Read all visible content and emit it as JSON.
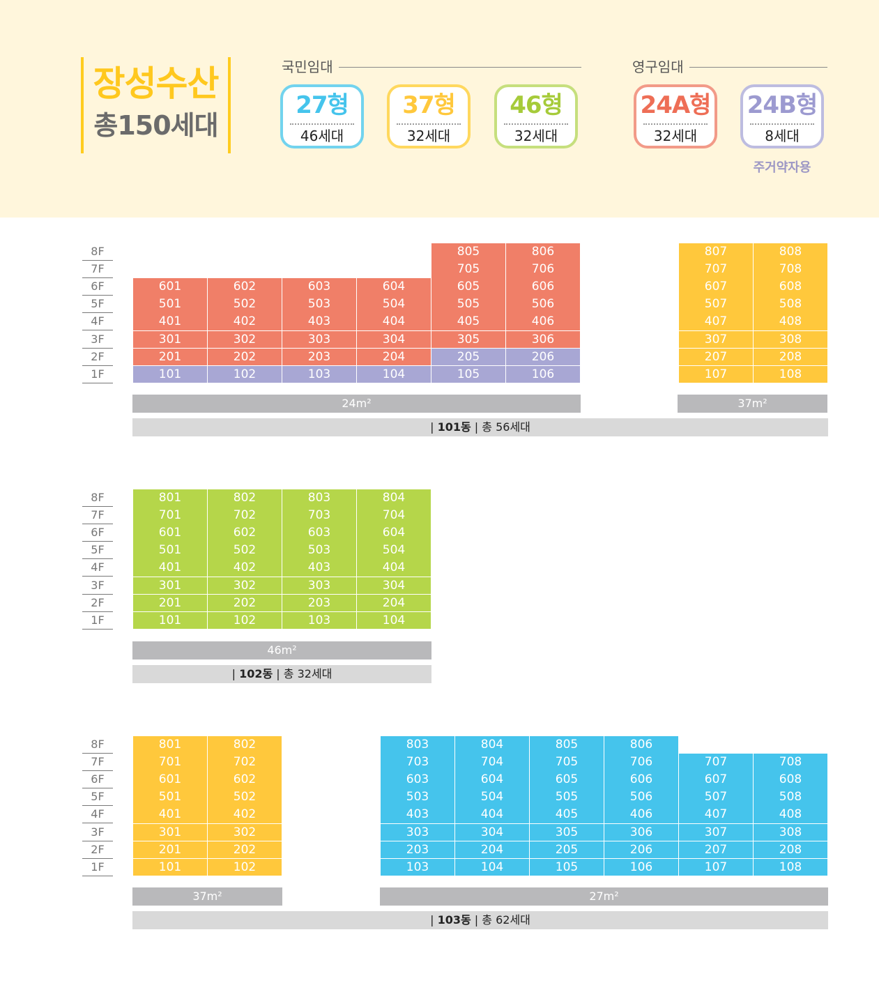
{
  "colors": {
    "t24A": "#f07f68",
    "t24B": "#a8a7d4",
    "t37": "#ffc83c",
    "t46": "#b5d64a",
    "t27": "#45c4ec"
  },
  "header": {
    "title": "장성수산",
    "subtitle": "총150세대",
    "groups": [
      {
        "label": "국민임대"
      },
      {
        "label": "영구임대"
      }
    ],
    "badges": [
      {
        "name": "27형",
        "count": "46세대",
        "color": "#45c4ec"
      },
      {
        "name": "37형",
        "count": "32세대",
        "color": "#ffc83c"
      },
      {
        "name": "46형",
        "count": "32세대",
        "color": "#b5d64a"
      },
      {
        "name": "24A형",
        "count": "32세대",
        "color": "#f07f68"
      },
      {
        "name": "24B형",
        "count": "8세대",
        "color": "#a8a7d4",
        "note": "주거약자용"
      }
    ]
  },
  "floors": [
    "8F",
    "7F",
    "6F",
    "5F",
    "4F",
    "3F",
    "2F",
    "1F"
  ],
  "buildings": [
    {
      "name": "101동",
      "total": "총 56세대",
      "areas": [
        "24m²",
        "37m²"
      ],
      "rows": [
        [
          "",
          "",
          "",
          "",
          "805",
          "806",
          "807",
          "808"
        ],
        [
          "",
          "",
          "",
          "",
          "705",
          "706",
          "707",
          "708"
        ],
        [
          "601",
          "602",
          "603",
          "604",
          "605",
          "606",
          "607",
          "608"
        ],
        [
          "501",
          "502",
          "503",
          "504",
          "505",
          "506",
          "507",
          "508"
        ],
        [
          "401",
          "402",
          "403",
          "404",
          "405",
          "406",
          "407",
          "408"
        ],
        [
          "301",
          "302",
          "303",
          "304",
          "305",
          "306",
          "307",
          "308"
        ],
        [
          "201",
          "202",
          "203",
          "204",
          "205",
          "206",
          "207",
          "208"
        ],
        [
          "101",
          "102",
          "103",
          "104",
          "105",
          "106",
          "107",
          "108"
        ]
      ]
    },
    {
      "name": "102동",
      "total": "총 32세대",
      "areas": [
        "46m²"
      ],
      "rows": [
        [
          "801",
          "802",
          "803",
          "804"
        ],
        [
          "701",
          "702",
          "703",
          "704"
        ],
        [
          "601",
          "602",
          "603",
          "604"
        ],
        [
          "501",
          "502",
          "503",
          "504"
        ],
        [
          "401",
          "402",
          "403",
          "404"
        ],
        [
          "301",
          "302",
          "303",
          "304"
        ],
        [
          "201",
          "202",
          "203",
          "204"
        ],
        [
          "101",
          "102",
          "103",
          "104"
        ]
      ]
    },
    {
      "name": "103동",
      "total": "총 62세대",
      "areas": [
        "37m²",
        "27m²"
      ],
      "rows": [
        [
          "801",
          "802",
          "803",
          "804",
          "805",
          "806",
          "",
          ""
        ],
        [
          "701",
          "702",
          "703",
          "704",
          "705",
          "706",
          "707",
          "708"
        ],
        [
          "601",
          "602",
          "603",
          "604",
          "605",
          "606",
          "607",
          "608"
        ],
        [
          "501",
          "502",
          "503",
          "504",
          "505",
          "506",
          "507",
          "508"
        ],
        [
          "401",
          "402",
          "403",
          "404",
          "405",
          "406",
          "407",
          "408"
        ],
        [
          "301",
          "302",
          "303",
          "304",
          "305",
          "306",
          "307",
          "308"
        ],
        [
          "201",
          "202",
          "203",
          "204",
          "205",
          "206",
          "207",
          "208"
        ],
        [
          "101",
          "102",
          "103",
          "104",
          "105",
          "106",
          "107",
          "108"
        ]
      ]
    }
  ]
}
